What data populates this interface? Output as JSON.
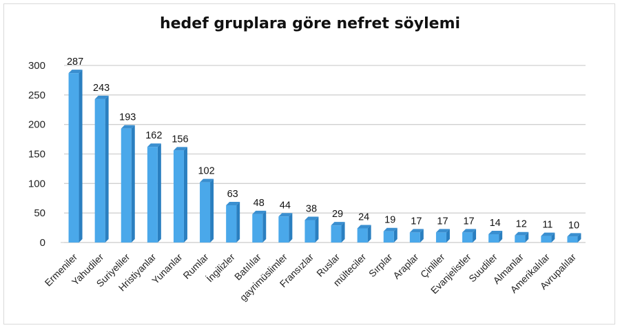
{
  "chart_data": {
    "type": "bar",
    "title": "hedef gruplara göre nefret söylemi",
    "categories": [
      "Ermeniler",
      "Yahudiler",
      "Suriyeliler",
      "Hristiyanlar",
      "Yunanlar",
      "Rumlar",
      "İngilizler",
      "Batılılar",
      "gayrimüslimler",
      "Fransızlar",
      "Ruslar",
      "mülteciler",
      "Sırplar",
      "Araplar",
      "Çinliler",
      "Evanjelistler",
      "Suudiler",
      "Almanlar",
      "Amerikalılar",
      "Avrupalılar"
    ],
    "values": [
      287,
      243,
      193,
      162,
      156,
      102,
      63,
      48,
      44,
      38,
      29,
      24,
      19,
      17,
      17,
      17,
      14,
      12,
      11,
      10
    ],
    "ylim": [
      0,
      300
    ],
    "yticks": [
      0,
      50,
      100,
      150,
      200,
      250,
      300
    ],
    "xlabel": "",
    "ylabel": "",
    "grid": true,
    "bar_color": "#4aa8ea",
    "bar_side_color": "#2a7fc0",
    "bar_top_color": "#3a8fd0",
    "grid_color": "#d0d0d0"
  }
}
